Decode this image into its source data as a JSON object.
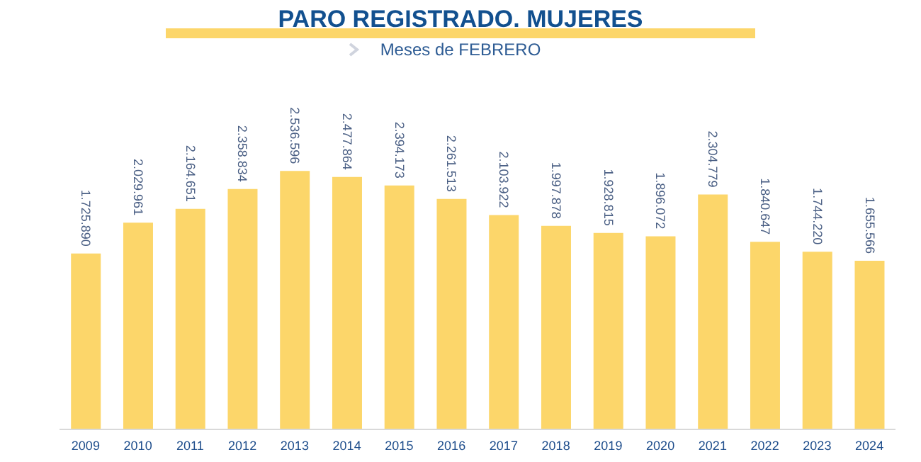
{
  "chart_data": {
    "type": "bar",
    "title": "PARO REGISTRADO. MUJERES",
    "subtitle": "Meses de FEBRERO",
    "categories": [
      "2009",
      "2010",
      "2011",
      "2012",
      "2013",
      "2014",
      "2015",
      "2016",
      "2017",
      "2018",
      "2019",
      "2020",
      "2021",
      "2022",
      "2023",
      "2024"
    ],
    "values": [
      1725890,
      2029961,
      2164651,
      2358834,
      2536596,
      2477864,
      2394173,
      2261513,
      2103922,
      1997878,
      1928815,
      1896072,
      2304779,
      1840647,
      1744220,
      1655566
    ],
    "value_labels": [
      "1.725.890",
      "2.029.961",
      "2.164.651",
      "2.358.834",
      "2.536.596",
      "2.477.864",
      "2.394.173",
      "2.261.513",
      "2.103.922",
      "1.997.878",
      "1.928.815",
      "1.896.072",
      "2.304.779",
      "1.840.647",
      "1.744.220",
      "1.655.566"
    ],
    "color": "#fcd66a"
  }
}
